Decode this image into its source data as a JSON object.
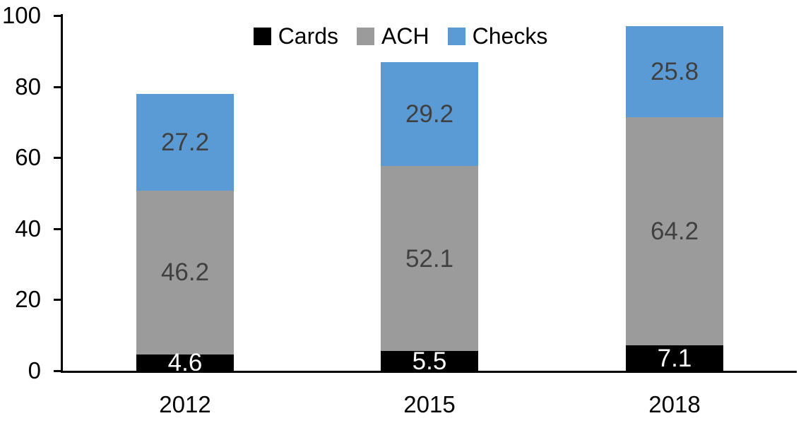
{
  "chart_data": {
    "type": "bar",
    "stacked": true,
    "title": "",
    "categories": [
      "2012",
      "2015",
      "2018"
    ],
    "series": [
      {
        "name": "Cards",
        "color": "#000000",
        "label_color": "#ffffff",
        "values": [
          4.6,
          5.5,
          7.1
        ]
      },
      {
        "name": "ACH",
        "color": "#9b9b9b",
        "label_color": "#404040",
        "values": [
          46.2,
          52.1,
          64.2
        ]
      },
      {
        "name": "Checks",
        "color": "#5b9bd5",
        "label_color": "#404040",
        "values": [
          27.2,
          29.2,
          25.8
        ]
      }
    ],
    "xlabel": "",
    "ylabel": "",
    "ylim": [
      0,
      100
    ],
    "yticks": [
      0,
      20,
      40,
      60,
      80,
      100
    ],
    "grid": false,
    "legend_position": "top",
    "axis_color": "#000000",
    "background_color": "#ffffff"
  }
}
